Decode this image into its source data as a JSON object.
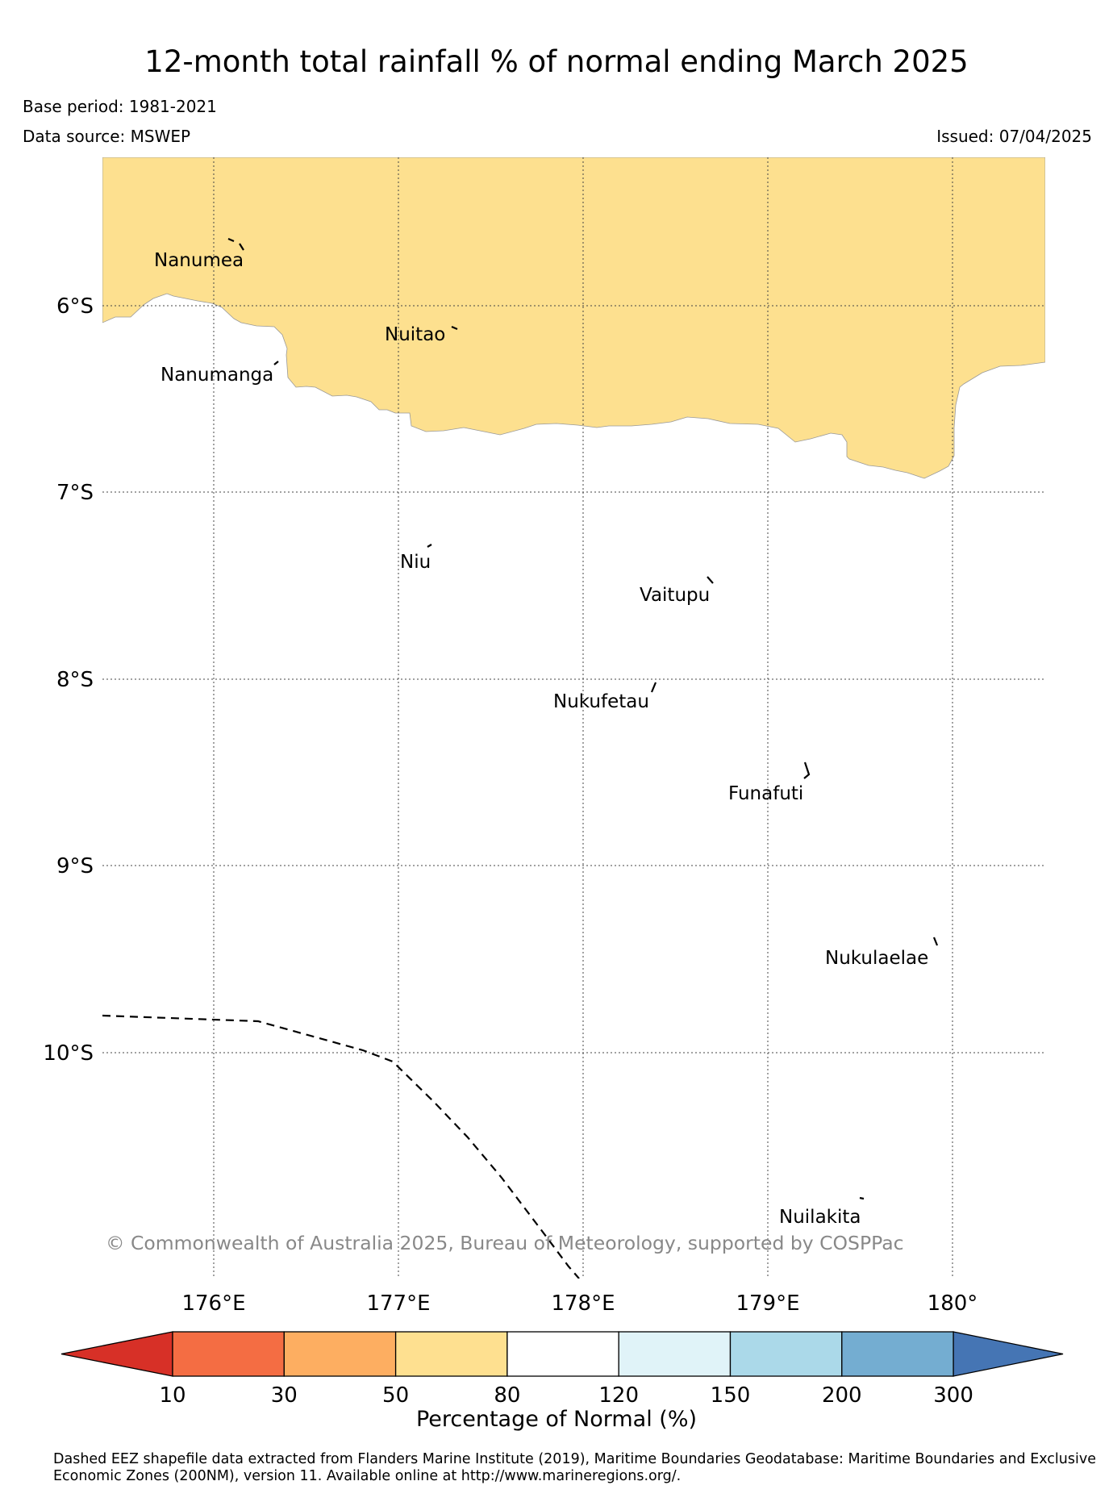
{
  "title": "12-month total rainfall % of normal ending March 2025",
  "base_period": "Base period: 1981-2021",
  "data_source": "Data source: MSWEP",
  "issued": "Issued: 07/04/2025",
  "copyright": "© Commonwealth of Australia 2025, Bureau of Meteorology, supported by COSPPac",
  "map": {
    "lat_labels": [
      "6°S",
      "7°S",
      "8°S",
      "9°S",
      "10°S"
    ],
    "lon_labels": [
      "176°E",
      "177°E",
      "178°E",
      "179°E",
      "180°"
    ],
    "islands": [
      {
        "name": "Nanumea",
        "icon": "island-icon"
      },
      {
        "name": "Nuitao",
        "icon": "island-icon"
      },
      {
        "name": "Nanumanga",
        "icon": "island-icon"
      },
      {
        "name": "Niu",
        "icon": "island-icon"
      },
      {
        "name": "Vaitupu",
        "icon": "island-icon"
      },
      {
        "name": "Nukufetau",
        "icon": "island-icon"
      },
      {
        "name": "Funafuti",
        "icon": "island-icon"
      },
      {
        "name": "Nukulaelae",
        "icon": "island-icon"
      },
      {
        "name": "Nuilakita",
        "icon": "island-icon"
      }
    ],
    "shaded_category": "50-80",
    "shaded_color": "#fde08f"
  },
  "colorbar": {
    "label": "Percentage of Normal (%)",
    "ticks": [
      "10",
      "30",
      "50",
      "80",
      "120",
      "150",
      "200",
      "300"
    ],
    "low_extend_color": "#d73027",
    "high_extend_color": "#4575b4",
    "colors": [
      "#f46d43",
      "#fdae61",
      "#fee090",
      "#ffffff",
      "#e0f3f8",
      "#abd9e9",
      "#74add1"
    ]
  },
  "footnote": "Dashed EEZ shapefile data extracted from Flanders Marine Institute (2019), Maritime Boundaries Geodatabase: Maritime Boundaries and Exclusive Economic Zones (200NM), version 11. Available online at http://www.marineregions.org/."
}
